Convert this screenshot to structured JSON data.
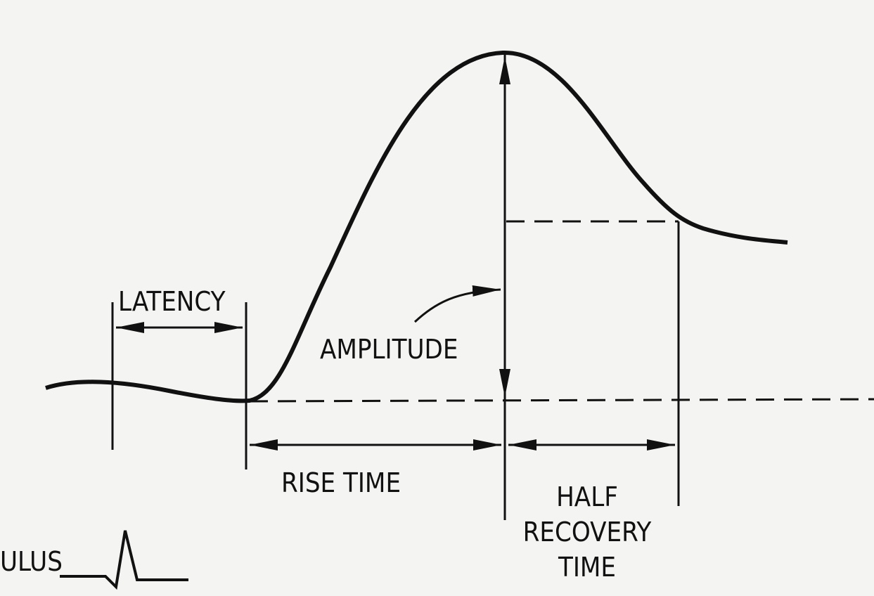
{
  "labels": {
    "latency": "LATENCY",
    "amplitude": "AMPLITUDE",
    "rise_time": "RISE TIME",
    "half_recovery": [
      "HALF",
      "RECOVERY",
      "TIME"
    ],
    "stimulus": "ULUS"
  }
}
